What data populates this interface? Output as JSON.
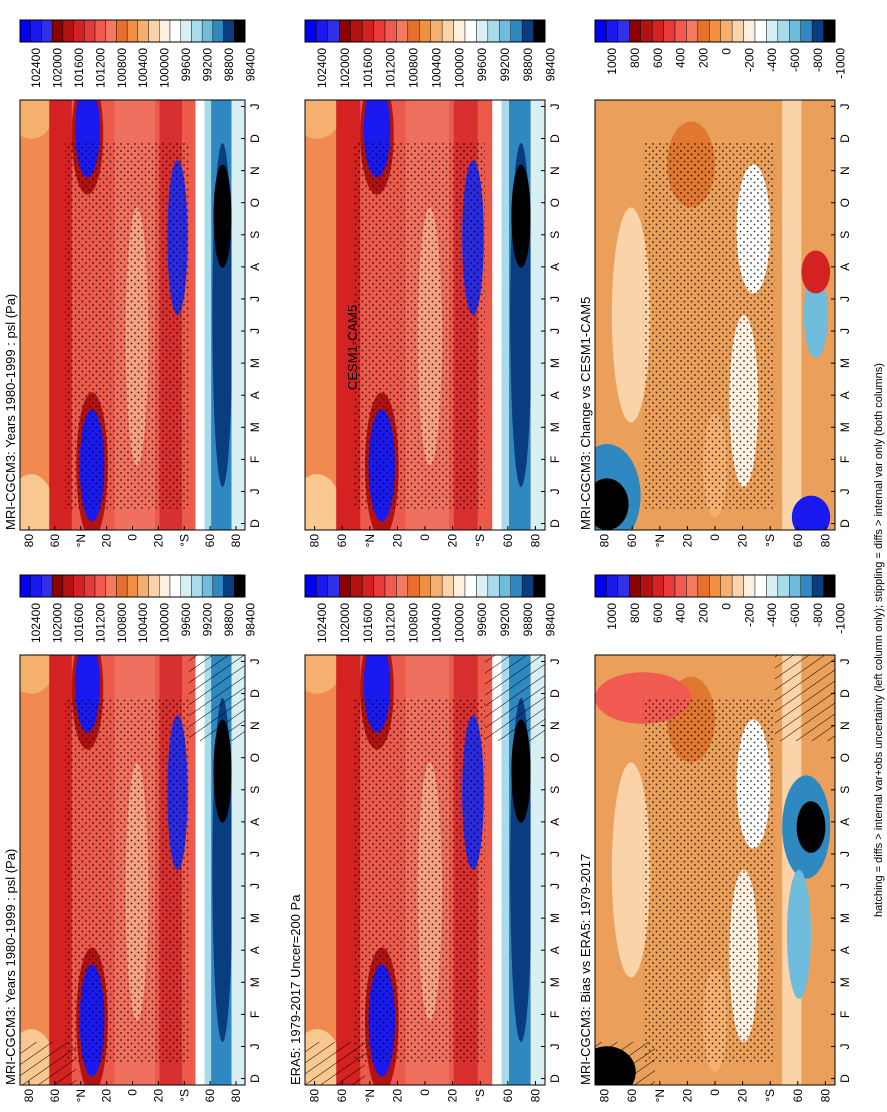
{
  "panels": [
    {
      "title": "MRI-CGCM3: Years 1980-1999 : psl (Pa)",
      "lat_labels": [
        "80",
        "60",
        "°N",
        "20",
        "0",
        "20",
        "°S",
        "60",
        "80"
      ],
      "month_labels": [
        "D",
        "J",
        "F",
        "M",
        "A",
        "M",
        "J",
        "J",
        "A",
        "S",
        "O",
        "N",
        "D",
        "J"
      ],
      "colorbar_labels": [
        "102400",
        "102000",
        "101600",
        "101200",
        "100800",
        "100400",
        "100000",
        "99600",
        "99200",
        "98800",
        "98400"
      ]
    },
    {
      "title": "MRI-CGCM3: Years 1980-1999 : psl (Pa)",
      "lat_labels": [
        "80",
        "60",
        "°N",
        "20",
        "0",
        "20",
        "°S",
        "60",
        "80"
      ],
      "month_labels": [
        "D",
        "J",
        "F",
        "M",
        "A",
        "M",
        "J",
        "J",
        "A",
        "S",
        "O",
        "N",
        "D",
        "J"
      ],
      "colorbar_labels": [
        "102400",
        "102000",
        "101600",
        "101200",
        "100800",
        "100400",
        "100000",
        "99600",
        "99200",
        "98800",
        "98400"
      ]
    },
    {
      "title": "ERA5: 1979-2017 Uncer=200 Pa",
      "lat_labels": [
        "80",
        "60",
        "°N",
        "20",
        "0",
        "20",
        "°S",
        "60",
        "80"
      ],
      "month_labels": [
        "D",
        "J",
        "F",
        "M",
        "A",
        "M",
        "J",
        "J",
        "A",
        "S",
        "O",
        "N",
        "D",
        "J"
      ],
      "colorbar_labels": [
        "102400",
        "102000",
        "101600",
        "101200",
        "100800",
        "100400",
        "100000",
        "99600",
        "99200",
        "98800",
        "98400"
      ]
    },
    {
      "title": "CESM1-CAM5",
      "lat_labels": [
        "80",
        "60",
        "°N",
        "20",
        "0",
        "20",
        "°S",
        "60",
        "80"
      ],
      "month_labels": [
        "D",
        "J",
        "F",
        "M",
        "A",
        "M",
        "J",
        "J",
        "A",
        "S",
        "O",
        "N",
        "D",
        "J"
      ],
      "colorbar_labels": [
        "102400",
        "102000",
        "101600",
        "101200",
        "100800",
        "100400",
        "100000",
        "99600",
        "99200",
        "98800",
        "98400"
      ]
    },
    {
      "title": "MRI-CGCM3: Bias vs ERA5: 1979-2017",
      "lat_labels": [
        "80",
        "60",
        "°N",
        "20",
        "0",
        "20",
        "°S",
        "60",
        "80"
      ],
      "month_labels": [
        "D",
        "J",
        "F",
        "M",
        "A",
        "M",
        "J",
        "J",
        "A",
        "S",
        "O",
        "N",
        "D",
        "J"
      ],
      "colorbar_labels": [
        "1000",
        "800",
        "600",
        "400",
        "200",
        "0",
        "-200",
        "-400",
        "-600",
        "-800",
        "-1000"
      ]
    },
    {
      "title": "MRI-CGCM3: Change vs CESM1-CAM5",
      "lat_labels": [
        "80",
        "60",
        "°N",
        "20",
        "0",
        "20",
        "°S",
        "60",
        "80"
      ],
      "month_labels": [
        "D",
        "J",
        "F",
        "M",
        "A",
        "M",
        "J",
        "J",
        "A",
        "S",
        "O",
        "N",
        "D",
        "J"
      ],
      "colorbar_labels": [
        "1000",
        "800",
        "600",
        "400",
        "200",
        "0",
        "-200",
        "-400",
        "-600",
        "-800",
        "-1000"
      ]
    }
  ],
  "caption": "hatching = diffs > internal var+obs uncertainty (left column only); stippling = diffs > internal var only (both columns)"
}
